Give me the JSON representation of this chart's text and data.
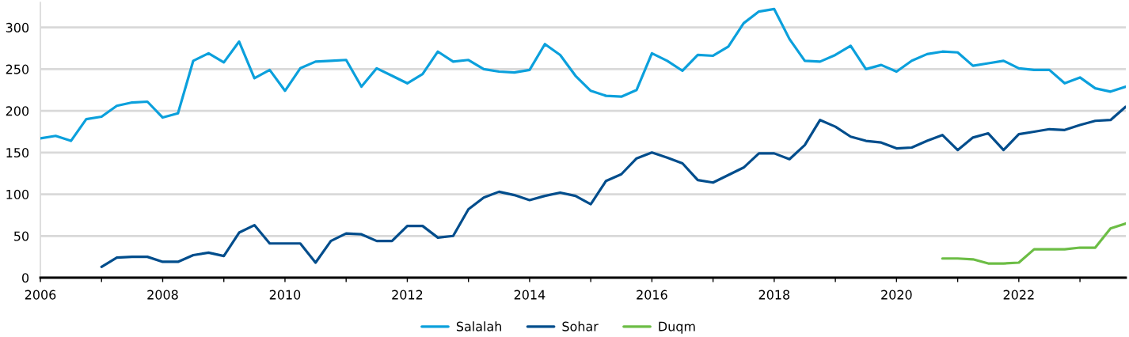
{
  "chart_data": {
    "type": "line",
    "x": [
      2006,
      2006.25,
      2006.5,
      2006.75,
      2007,
      2007.25,
      2007.5,
      2007.75,
      2008,
      2008.25,
      2008.5,
      2008.75,
      2009,
      2009.25,
      2009.5,
      2009.75,
      2010,
      2010.25,
      2010.5,
      2010.75,
      2011,
      2011.25,
      2011.5,
      2011.75,
      2012,
      2012.25,
      2012.5,
      2012.75,
      2013,
      2013.25,
      2013.5,
      2013.75,
      2014,
      2014.25,
      2014.5,
      2014.75,
      2015,
      2015.25,
      2015.5,
      2015.75,
      2016,
      2016.25,
      2016.5,
      2016.75,
      2017,
      2017.25,
      2017.5,
      2017.75,
      2018,
      2018.25,
      2018.5,
      2018.75,
      2019,
      2019.25,
      2019.5,
      2019.75,
      2020,
      2020.25,
      2020.5,
      2020.75,
      2021,
      2021.25,
      2021.5,
      2021.75,
      2022,
      2022.25,
      2022.5,
      2022.75,
      2023,
      2023.25,
      2023.5,
      2023.75
    ],
    "series": [
      {
        "name": "Salalah",
        "color": "#0ba0dc",
        "values": [
          167,
          170,
          164,
          190,
          193,
          206,
          210,
          211,
          192,
          197,
          260,
          269,
          258,
          283,
          239,
          249,
          224,
          251,
          259,
          260,
          261,
          229,
          251,
          242,
          233,
          244,
          271,
          259,
          261,
          250,
          247,
          246,
          249,
          280,
          267,
          242,
          224,
          218,
          217,
          225,
          269,
          260,
          248,
          267,
          266,
          277,
          305,
          319,
          322,
          286,
          260,
          259,
          267,
          278,
          250,
          255,
          247,
          260,
          268,
          271,
          270,
          254,
          257,
          260,
          251,
          249,
          249,
          233,
          240,
          227,
          223,
          229
        ]
      },
      {
        "name": "Sohar",
        "color": "#004d8c",
        "values": [
          null,
          null,
          null,
          null,
          13,
          24,
          25,
          25,
          19,
          19,
          27,
          30,
          26,
          54,
          63,
          41,
          41,
          41,
          18,
          44,
          53,
          52,
          44,
          44,
          62,
          62,
          48,
          50,
          82,
          96,
          103,
          99,
          93,
          98,
          102,
          98,
          88,
          116,
          124,
          143,
          150,
          144,
          137,
          117,
          114,
          123,
          132,
          149,
          149,
          142,
          159,
          189,
          181,
          169,
          164,
          162,
          155,
          156,
          164,
          171,
          153,
          168,
          173,
          153,
          172,
          175,
          178,
          177,
          183,
          188,
          189,
          205
        ]
      },
      {
        "name": "Duqm",
        "color": "#6cbd45",
        "values": [
          null,
          null,
          null,
          null,
          null,
          null,
          null,
          null,
          null,
          null,
          null,
          null,
          null,
          null,
          null,
          null,
          null,
          null,
          null,
          null,
          null,
          null,
          null,
          null,
          null,
          null,
          null,
          null,
          null,
          null,
          null,
          null,
          null,
          null,
          null,
          null,
          null,
          null,
          null,
          null,
          null,
          null,
          null,
          null,
          null,
          null,
          null,
          null,
          null,
          null,
          null,
          null,
          null,
          null,
          null,
          null,
          null,
          null,
          null,
          23,
          23,
          22,
          17,
          17,
          18,
          34,
          34,
          34,
          36,
          36,
          59,
          65
        ]
      }
    ],
    "xlim": [
      2006,
      2023.75
    ],
    "xticks": [
      2006,
      {
        "value": 2007,
        "label": null
      },
      2008,
      {
        "value": 2009,
        "label": null
      },
      2010,
      {
        "value": 2011,
        "label": null
      },
      2012,
      {
        "value": 2013,
        "label": null
      },
      2014,
      {
        "value": 2015,
        "label": null
      },
      2016,
      {
        "value": 2017,
        "label": null
      },
      2018,
      {
        "value": 2019,
        "label": null
      },
      2020,
      {
        "value": 2021,
        "label": null
      },
      2022,
      {
        "value": 2023,
        "label": null
      }
    ],
    "ylim": [
      0,
      330
    ],
    "yticks": [
      0,
      50,
      100,
      150,
      200,
      250,
      300
    ],
    "grid": "y",
    "legend": "bottom",
    "line_style": "solid"
  }
}
